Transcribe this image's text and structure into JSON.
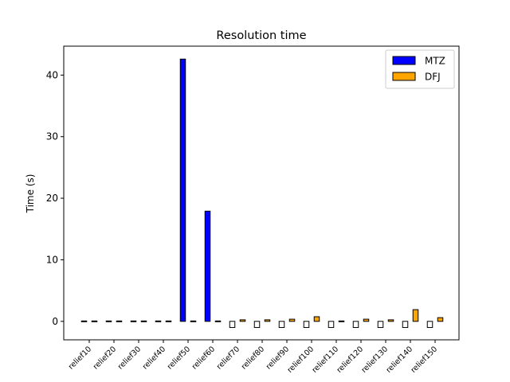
{
  "chart_data": {
    "type": "bar",
    "title": "Resolution time",
    "xlabel": "",
    "ylabel": "Time (s)",
    "categories": [
      "relief10",
      "relief20",
      "relief30",
      "relief40",
      "relief50",
      "relief60",
      "relief70",
      "relief80",
      "relief90",
      "relief100",
      "relief110",
      "relief120",
      "relief130",
      "relief140",
      "relief150"
    ],
    "series": [
      {
        "name": "MTZ",
        "color": "#0000ff",
        "values": [
          0.0,
          0.0,
          0.0,
          0.05,
          42.6,
          17.9,
          -1.0,
          -1.0,
          -1.0,
          -1.0,
          -1.0,
          -1.0,
          -1.0,
          -1.0,
          -1.0
        ]
      },
      {
        "name": "DFJ",
        "color": "#ffa500",
        "values": [
          0.0,
          0.0,
          0.0,
          0.05,
          0.1,
          0.1,
          0.25,
          0.25,
          0.35,
          0.75,
          0.1,
          0.35,
          0.25,
          1.9,
          0.6
        ]
      }
    ],
    "ylim": [
      -3.0,
      44.7
    ],
    "yticks": [
      0,
      10,
      20,
      30,
      40
    ],
    "legend_position": "top-right",
    "grid": false
  }
}
